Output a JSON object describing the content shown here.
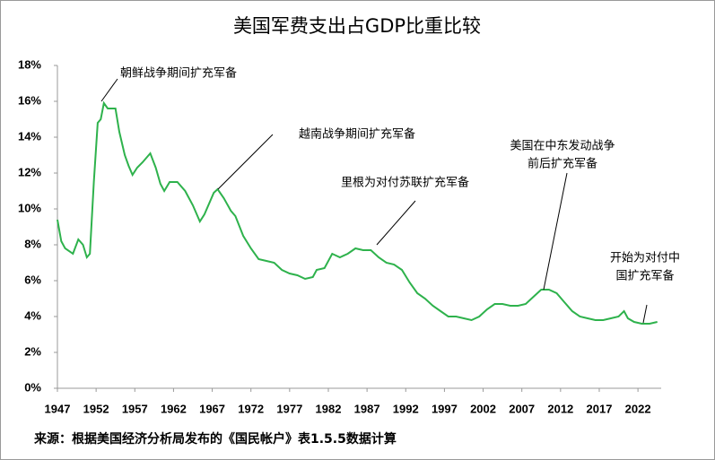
{
  "chart_data": {
    "type": "line",
    "title": "美国军费支出占GDP比重比较",
    "source": "来源：根据美国经济分析局发布的《国民帐户》表1.5.5数据计算",
    "x": [
      1947,
      1947.5,
      1948,
      1949,
      1949.7,
      1950.3,
      1950.8,
      1951.2,
      1951.7,
      1952.2,
      1952.6,
      1953,
      1953.5,
      1954.5,
      1955,
      1955.7,
      1956.2,
      1956.7,
      1957.3,
      1958,
      1959,
      1959.7,
      1960.3,
      1960.8,
      1961.5,
      1962.5,
      1963.5,
      1964.5,
      1965.4,
      1966,
      1967.2,
      1967.7,
      1968.5,
      1969.4,
      1970,
      1971,
      1972,
      1973,
      1974,
      1975,
      1976,
      1977,
      1978,
      1979,
      1980,
      1980.5,
      1981.5,
      1982.5,
      1983.5,
      1984.5,
      1985.5,
      1986.5,
      1987.5,
      1988.5,
      1989.5,
      1990.5,
      1991.5,
      1992.5,
      1993.5,
      1994.5,
      1995.5,
      1996.5,
      1997.5,
      1998.5,
      1999.5,
      2000.5,
      2001.5,
      2002.5,
      2003.5,
      2004.5,
      2005.5,
      2006.5,
      2007.5,
      2008.5,
      2009.5,
      2010.5,
      2011.5,
      2012.5,
      2013.5,
      2014.5,
      2015.5,
      2016.5,
      2017.5,
      2018.5,
      2019.5,
      2020.2,
      2020.7,
      2021.5,
      2022.5,
      2023.5,
      2024.5
    ],
    "series": [
      {
        "color": "#2eb24c",
        "values": [
          9.4,
          8.2,
          7.8,
          7.5,
          8.3,
          8.0,
          7.3,
          7.5,
          11.5,
          14.8,
          15.0,
          15.9,
          15.6,
          15.6,
          14.3,
          13.0,
          12.4,
          11.9,
          12.3,
          12.6,
          13.1,
          12.3,
          11.4,
          11.0,
          11.5,
          11.5,
          11.0,
          10.2,
          9.3,
          9.7,
          10.9,
          11.1,
          10.6,
          9.9,
          9.6,
          8.5,
          7.8,
          7.2,
          7.1,
          7.0,
          6.6,
          6.4,
          6.3,
          6.1,
          6.2,
          6.6,
          6.7,
          7.5,
          7.3,
          7.5,
          7.8,
          7.7,
          7.7,
          7.3,
          7.0,
          6.9,
          6.6,
          5.9,
          5.3,
          5.0,
          4.6,
          4.3,
          4.0,
          4.0,
          3.9,
          3.8,
          4.0,
          4.4,
          4.7,
          4.7,
          4.6,
          4.6,
          4.7,
          5.1,
          5.5,
          5.5,
          5.3,
          4.8,
          4.3,
          4.0,
          3.9,
          3.8,
          3.8,
          3.9,
          4.0,
          4.3,
          3.9,
          3.7,
          3.6,
          3.6,
          3.7
        ]
      }
    ],
    "xlim": [
      1947,
      2025
    ],
    "xticks": [
      1947,
      1952,
      1957,
      1962,
      1967,
      1972,
      1977,
      1982,
      1987,
      1992,
      1997,
      2002,
      2007,
      2012,
      2017,
      2022
    ],
    "ylim": [
      0,
      18
    ],
    "yticks": [
      {
        "value": 0,
        "label": "0%"
      },
      {
        "value": 2,
        "label": "2%"
      },
      {
        "value": 4,
        "label": "4%"
      },
      {
        "value": 6,
        "label": "6%"
      },
      {
        "value": 8,
        "label": "8%"
      },
      {
        "value": 10,
        "label": "10%"
      },
      {
        "value": 12,
        "label": "12%"
      },
      {
        "value": 14,
        "label": "14%"
      },
      {
        "value": 16,
        "label": "16%"
      },
      {
        "value": 18,
        "label": "18%"
      }
    ],
    "annotations": [
      [
        "朝鲜战争期间扩充军备"
      ],
      [
        "越南战争期间扩充军备"
      ],
      [
        "里根为对付苏联扩充军备"
      ],
      [
        "美国在中东发动战争",
        "前后扩充军备"
      ],
      [
        "开始为对付中",
        "国扩充军备"
      ]
    ]
  }
}
